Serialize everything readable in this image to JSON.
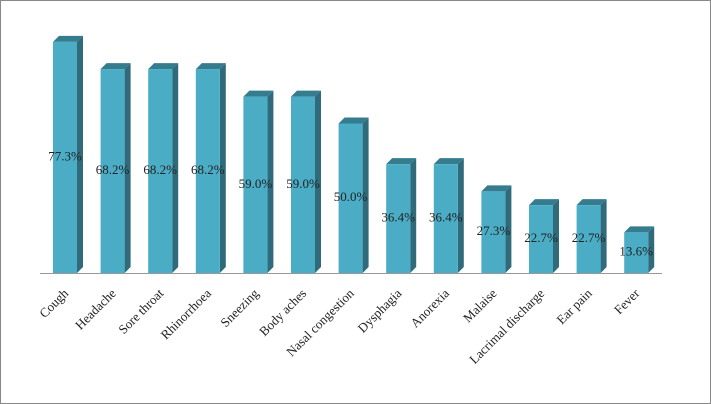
{
  "chart_data": {
    "type": "bar3d",
    "categories": [
      "Cough",
      "Headache",
      "Sore throat",
      "Rhinorrhoea",
      "Sneezing",
      "Body aches",
      "Nasal congestion",
      "Dysphagia",
      "Anorexia",
      "Malaise",
      "Lacrimal discharge",
      "Ear pain",
      "Fever"
    ],
    "values": [
      77.3,
      68.2,
      68.2,
      68.2,
      59.0,
      59.0,
      50.0,
      36.4,
      36.4,
      27.3,
      22.7,
      22.7,
      13.6
    ],
    "value_labels": [
      "77.3%",
      "68.2%",
      "68.2%",
      "68.2%",
      "59.0%",
      "59.0%",
      "50.0%",
      "36.4%",
      "36.4%",
      "27.3%",
      "22.7%",
      "22.7%",
      "13.6%"
    ],
    "color": "#4bacc6"
  }
}
